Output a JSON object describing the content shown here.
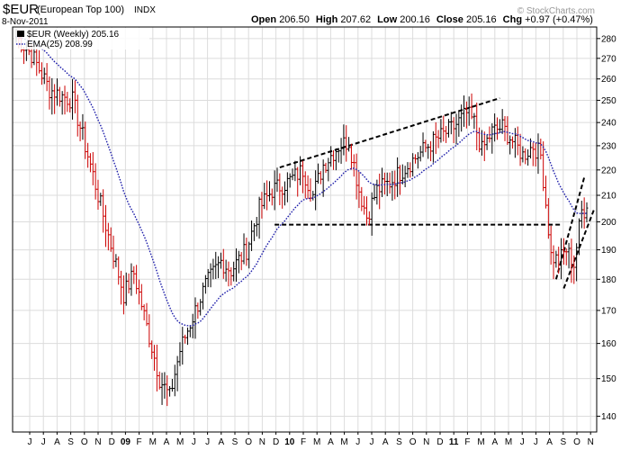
{
  "chart_data": {
    "type": "ohlc",
    "title": "$EUR",
    "subtitle": "(European Top 100)",
    "exchange": "INDX",
    "date": "8-Nov-2011",
    "header": {
      "open_label": "Open",
      "open": "206.50",
      "high_label": "High",
      "high": "207.62",
      "low_label": "Low",
      "low": "200.16",
      "close_label": "Close",
      "close": "205.16",
      "chg_label": "Chg",
      "chg": "+0.97 (+0.47%)"
    },
    "watermark": "© StockCharts.com",
    "legend": [
      {
        "label": "$EUR (Weekly) 205.16",
        "color": "#000000"
      },
      {
        "label": "EMA(25) 208.99",
        "color": "#1f1faa"
      }
    ],
    "yscale": "log",
    "ylim": [
      136,
      286
    ],
    "yticks": [
      140,
      150,
      160,
      170,
      180,
      190,
      200,
      210,
      220,
      230,
      240,
      250,
      260,
      270,
      280
    ],
    "x_month_labels": [
      "J",
      "J",
      "A",
      "S",
      "O",
      "N",
      "D",
      "09",
      "F",
      "M",
      "A",
      "M",
      "J",
      "J",
      "A",
      "S",
      "O",
      "N",
      "D",
      "10",
      "F",
      "M",
      "A",
      "M",
      "J",
      "J",
      "A",
      "S",
      "O",
      "N",
      "D",
      "11",
      "F",
      "M",
      "A",
      "M",
      "J",
      "J",
      "A",
      "S",
      "O",
      "N"
    ],
    "colors": {
      "up": "#000000",
      "down": "#cc0000",
      "ema": "#1f1faa",
      "grid": "#dcdcdc",
      "trend": "#000000"
    },
    "anchors": [
      {
        "t": 0,
        "y": 281
      },
      {
        "t": 6,
        "y": 272
      },
      {
        "t": 13,
        "y": 255
      },
      {
        "t": 18,
        "y": 252
      },
      {
        "t": 22,
        "y": 250
      },
      {
        "t": 27,
        "y": 230
      },
      {
        "t": 32,
        "y": 210
      },
      {
        "t": 36,
        "y": 195
      },
      {
        "t": 42,
        "y": 175
      },
      {
        "t": 46,
        "y": 182
      },
      {
        "t": 51,
        "y": 165
      },
      {
        "t": 56,
        "y": 150
      },
      {
        "t": 60,
        "y": 145
      },
      {
        "t": 64,
        "y": 158
      },
      {
        "t": 69,
        "y": 168
      },
      {
        "t": 74,
        "y": 178
      },
      {
        "t": 80,
        "y": 186
      },
      {
        "t": 84,
        "y": 183
      },
      {
        "t": 90,
        "y": 190
      },
      {
        "t": 95,
        "y": 205
      },
      {
        "t": 100,
        "y": 212
      },
      {
        "t": 106,
        "y": 215
      },
      {
        "t": 112,
        "y": 220
      },
      {
        "t": 116,
        "y": 210
      },
      {
        "t": 120,
        "y": 222
      },
      {
        "t": 126,
        "y": 230
      },
      {
        "t": 130,
        "y": 232
      },
      {
        "t": 134,
        "y": 212
      },
      {
        "t": 137,
        "y": 202
      },
      {
        "t": 141,
        "y": 212
      },
      {
        "t": 146,
        "y": 215
      },
      {
        "t": 151,
        "y": 220
      },
      {
        "t": 156,
        "y": 225
      },
      {
        "t": 161,
        "y": 230
      },
      {
        "t": 166,
        "y": 234
      },
      {
        "t": 171,
        "y": 238
      },
      {
        "t": 176,
        "y": 244
      },
      {
        "t": 179,
        "y": 240
      },
      {
        "t": 182,
        "y": 228
      },
      {
        "t": 186,
        "y": 236
      },
      {
        "t": 190,
        "y": 238
      },
      {
        "t": 194,
        "y": 232
      },
      {
        "t": 198,
        "y": 226
      },
      {
        "t": 202,
        "y": 230
      },
      {
        "t": 205,
        "y": 226
      },
      {
        "t": 209,
        "y": 188
      },
      {
        "t": 212,
        "y": 186
      },
      {
        "t": 215,
        "y": 190
      },
      {
        "t": 218,
        "y": 185
      },
      {
        "t": 221,
        "y": 204
      },
      {
        "t": 223,
        "y": 205
      }
    ],
    "trendlines": [
      {
        "t1": 103,
        "y1": 221,
        "t2": 189,
        "y2": 251
      },
      {
        "t1": 101,
        "y1": 199,
        "t2": 213,
        "y2": 199
      },
      {
        "t1": 211,
        "y1": 180,
        "t2": 222,
        "y2": 217
      },
      {
        "t1": 214,
        "y1": 177,
        "t2": 226,
        "y2": 205
      }
    ]
  }
}
